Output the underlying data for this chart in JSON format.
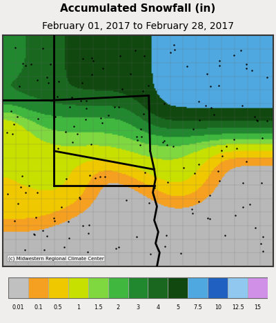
{
  "title": "Accumulated Snowfall (in)",
  "subtitle": "February 01, 2017 to February 28, 2017",
  "title_fontsize": 11,
  "subtitle_fontsize": 10,
  "copyright_text": "(c) Midwestern Regional Climate Center",
  "colorbar_labels": [
    "0.01",
    "0.1",
    "0.5",
    "1",
    "1.5",
    "2",
    "3",
    "4",
    "5",
    "7.5",
    "10",
    "12.5",
    "15"
  ],
  "colorbar_colors": [
    "#c0c0c0",
    "#f5a020",
    "#f0c800",
    "#c8e000",
    "#80d840",
    "#40b840",
    "#228830",
    "#1a6820",
    "#104810",
    "#50a8e0",
    "#2060c0",
    "#90c8f0",
    "#d090e8"
  ],
  "map_bg_color": "#b8b8b8",
  "fig_bg_color": "#f0eeec",
  "figsize": [
    4.0,
    4.68
  ],
  "dpi": 100
}
